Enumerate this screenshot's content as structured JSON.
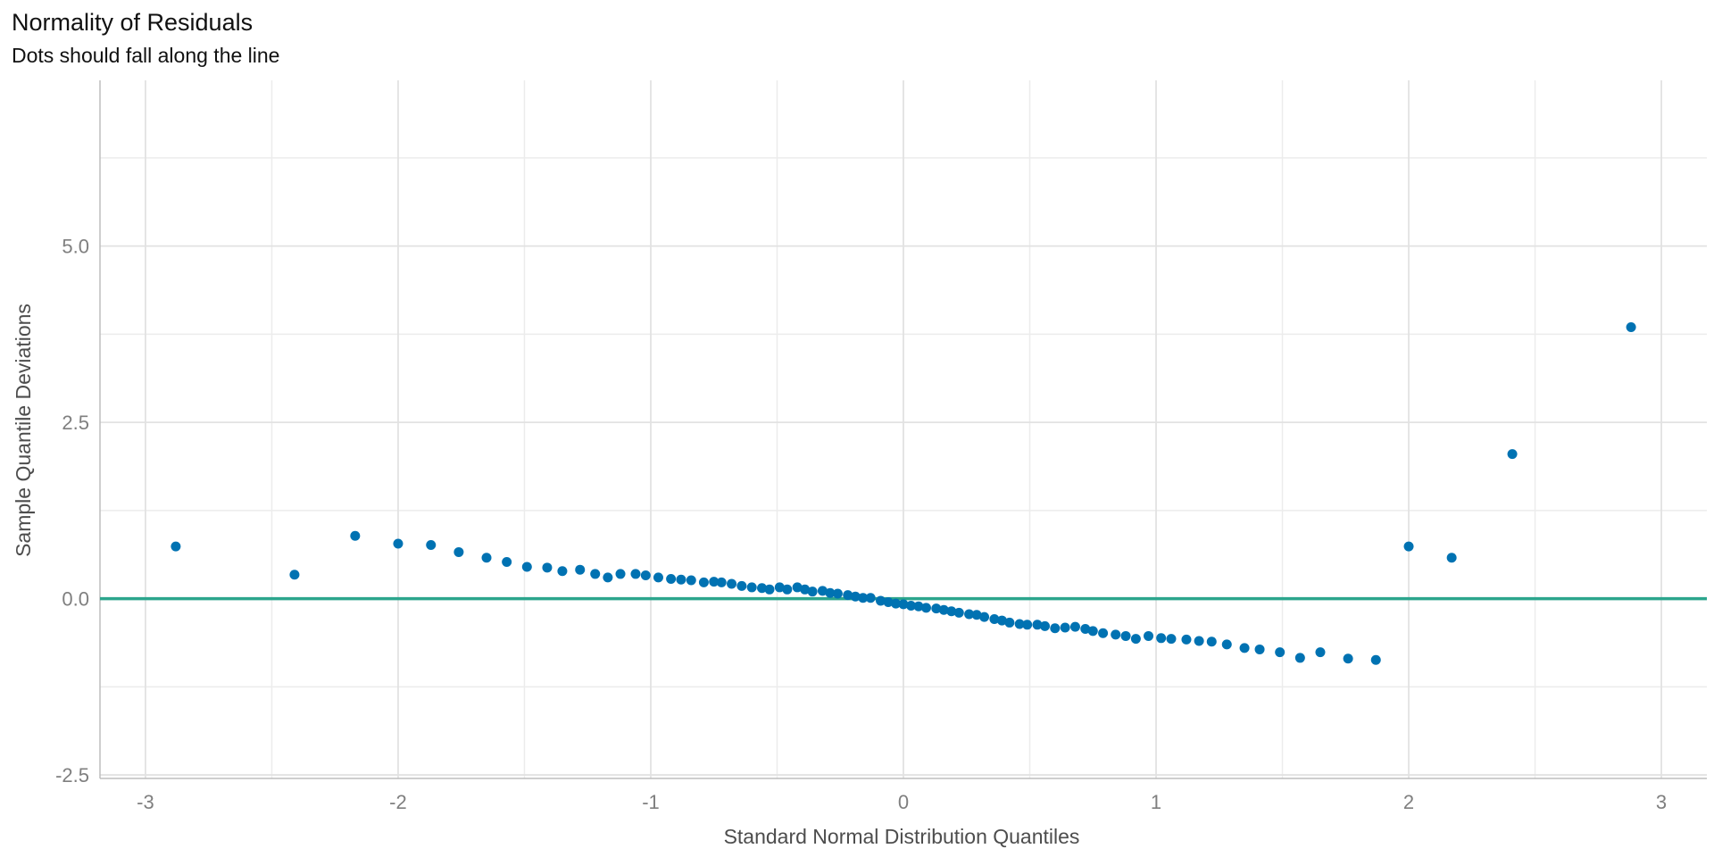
{
  "chart_data": {
    "type": "scatter",
    "title": "Normality of Residuals",
    "subtitle": "Dots should fall along the line",
    "xlabel": "Standard Normal Distribution Quantiles",
    "ylabel": "Sample Quantile Deviations",
    "xlim": [
      -3.18,
      3.18
    ],
    "ylim": [
      -2.55,
      7.35
    ],
    "x_ticks": [
      -3,
      -2,
      -1,
      0,
      1,
      2,
      3
    ],
    "x_tick_labels": [
      "-3",
      "-2",
      "-1",
      "0",
      "1",
      "2",
      "3"
    ],
    "y_ticks": [
      -2.5,
      0,
      2.5,
      5
    ],
    "y_tick_labels": [
      "-2.5",
      "0.0",
      "2.5",
      "5.0"
    ],
    "x_minor_ticks": [
      -2.5,
      -1.5,
      -0.5,
      0.5,
      1.5,
      2.5
    ],
    "y_minor_ticks": [
      -1.25,
      1.25,
      3.75,
      6.25
    ],
    "grid": true,
    "reference_line": {
      "y": 0,
      "color": "#2ca58d"
    },
    "point_color": "#0072b2",
    "points": [
      [
        -2.88,
        0.74
      ],
      [
        -2.41,
        0.34
      ],
      [
        -2.17,
        0.89
      ],
      [
        -2.0,
        0.78
      ],
      [
        -1.87,
        0.76
      ],
      [
        -1.76,
        0.66
      ],
      [
        -1.65,
        0.58
      ],
      [
        -1.57,
        0.52
      ],
      [
        -1.49,
        0.45
      ],
      [
        -1.41,
        0.44
      ],
      [
        -1.35,
        0.39
      ],
      [
        -1.28,
        0.41
      ],
      [
        -1.22,
        0.35
      ],
      [
        -1.17,
        0.3
      ],
      [
        -1.12,
        0.35
      ],
      [
        -1.06,
        0.35
      ],
      [
        -1.02,
        0.33
      ],
      [
        -0.97,
        0.3
      ],
      [
        -0.92,
        0.28
      ],
      [
        -0.88,
        0.27
      ],
      [
        -0.84,
        0.26
      ],
      [
        -0.79,
        0.23
      ],
      [
        -0.75,
        0.24
      ],
      [
        -0.72,
        0.23
      ],
      [
        -0.68,
        0.21
      ],
      [
        -0.64,
        0.18
      ],
      [
        -0.6,
        0.16
      ],
      [
        -0.56,
        0.15
      ],
      [
        -0.53,
        0.13
      ],
      [
        -0.49,
        0.16
      ],
      [
        -0.46,
        0.13
      ],
      [
        -0.42,
        0.16
      ],
      [
        -0.39,
        0.13
      ],
      [
        -0.36,
        0.1
      ],
      [
        -0.32,
        0.11
      ],
      [
        -0.29,
        0.08
      ],
      [
        -0.26,
        0.07
      ],
      [
        -0.22,
        0.05
      ],
      [
        -0.19,
        0.03
      ],
      [
        -0.16,
        0.01
      ],
      [
        -0.13,
        0.01
      ],
      [
        -0.09,
        -0.03
      ],
      [
        -0.06,
        -0.05
      ],
      [
        -0.03,
        -0.07
      ],
      [
        0.0,
        -0.08
      ],
      [
        0.03,
        -0.1
      ],
      [
        0.06,
        -0.11
      ],
      [
        0.09,
        -0.13
      ],
      [
        0.13,
        -0.14
      ],
      [
        0.16,
        -0.16
      ],
      [
        0.19,
        -0.18
      ],
      [
        0.22,
        -0.2
      ],
      [
        0.26,
        -0.22
      ],
      [
        0.29,
        -0.23
      ],
      [
        0.32,
        -0.26
      ],
      [
        0.36,
        -0.29
      ],
      [
        0.39,
        -0.31
      ],
      [
        0.42,
        -0.34
      ],
      [
        0.46,
        -0.36
      ],
      [
        0.49,
        -0.37
      ],
      [
        0.53,
        -0.37
      ],
      [
        0.56,
        -0.39
      ],
      [
        0.6,
        -0.42
      ],
      [
        0.64,
        -0.41
      ],
      [
        0.68,
        -0.4
      ],
      [
        0.72,
        -0.43
      ],
      [
        0.75,
        -0.46
      ],
      [
        0.79,
        -0.49
      ],
      [
        0.84,
        -0.51
      ],
      [
        0.88,
        -0.53
      ],
      [
        0.92,
        -0.57
      ],
      [
        0.97,
        -0.53
      ],
      [
        1.02,
        -0.56
      ],
      [
        1.06,
        -0.57
      ],
      [
        1.12,
        -0.58
      ],
      [
        1.17,
        -0.6
      ],
      [
        1.22,
        -0.61
      ],
      [
        1.28,
        -0.65
      ],
      [
        1.35,
        -0.7
      ],
      [
        1.41,
        -0.72
      ],
      [
        1.49,
        -0.76
      ],
      [
        1.57,
        -0.84
      ],
      [
        1.65,
        -0.76
      ],
      [
        1.76,
        -0.85
      ],
      [
        1.87,
        -0.87
      ],
      [
        2.0,
        0.74
      ],
      [
        2.17,
        0.58
      ],
      [
        2.41,
        2.05
      ],
      [
        2.88,
        3.85
      ]
    ]
  }
}
